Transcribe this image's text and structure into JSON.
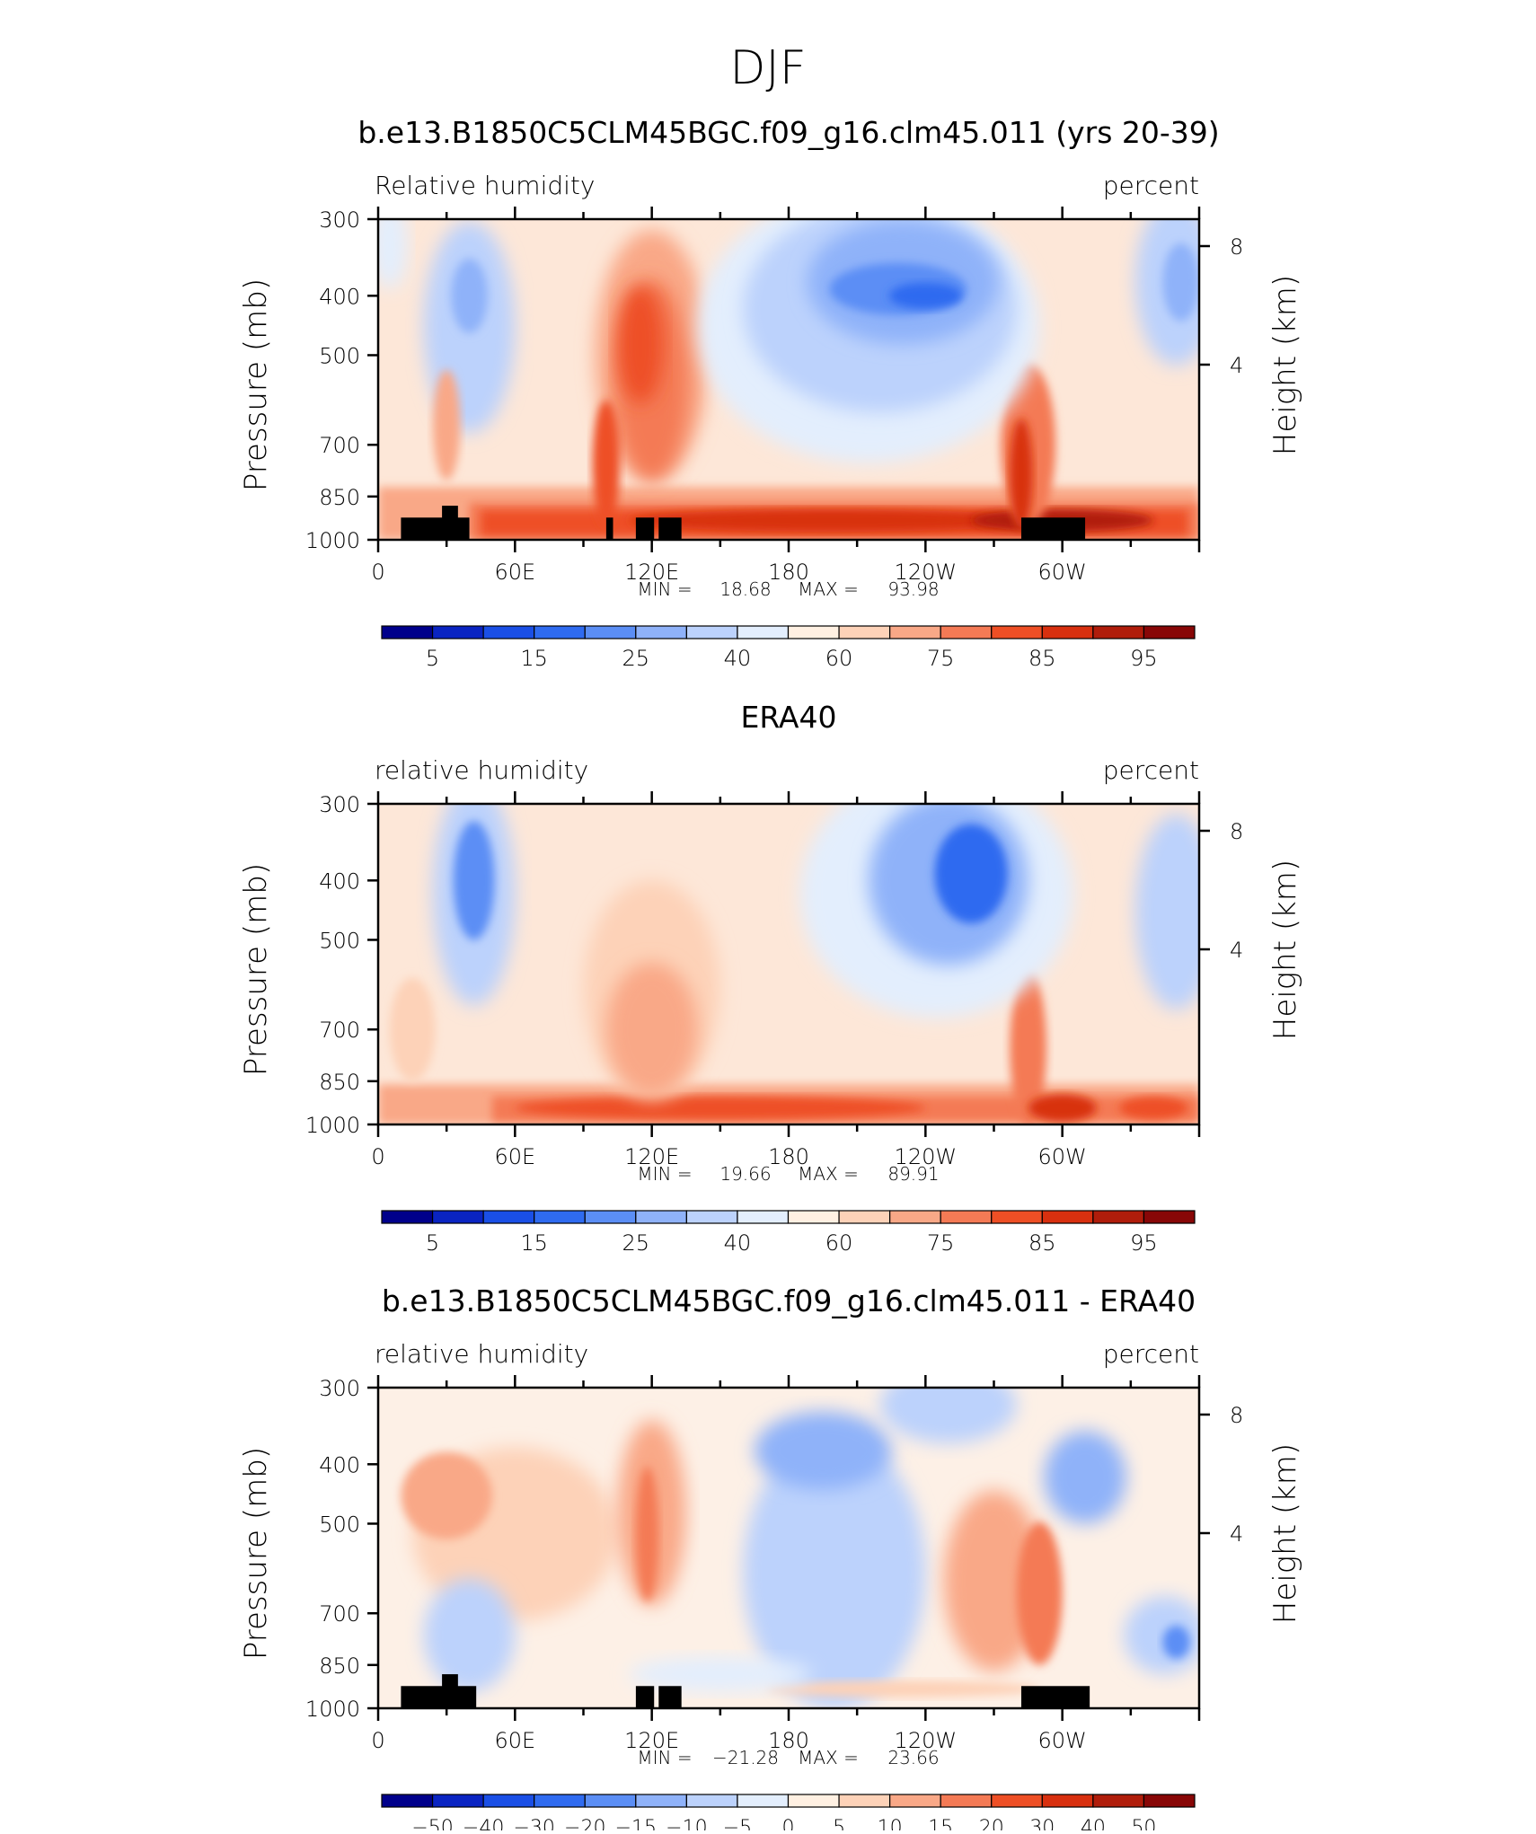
{
  "page_title": "DJF",
  "colors": {
    "rh_palette": [
      "#00008b",
      "#0a24c2",
      "#1a4fe6",
      "#2f6bf0",
      "#5b8ef5",
      "#8fb2f9",
      "#bcd2fc",
      "#e3eefd",
      "#fff0e2",
      "#fdd2b8",
      "#f9a887",
      "#f47a55",
      "#ee4f25",
      "#d8300f",
      "#b01d0b",
      "#880707"
    ],
    "diff_palette": [
      "#00008b",
      "#0a24c2",
      "#1a4fe6",
      "#2f6bf0",
      "#5b8ef5",
      "#8fb2f9",
      "#bcd2fc",
      "#e3eefd",
      "#fff0e2",
      "#fdd2b8",
      "#f9a887",
      "#f47a55",
      "#ee4f25",
      "#d8300f",
      "#b01d0b",
      "#880707"
    ],
    "topography": "#000000"
  },
  "chart_data": [
    {
      "type": "heatmap",
      "title": "b.e13.B1850C5CLM45BGC.f09_g16.clm45.011 (yrs 20-39)",
      "left_string": "Relative humidity",
      "right_string": "percent",
      "ylabel": "Pressure (mb)",
      "ylabel_right": "Height (km)",
      "x_ticks": [
        "0",
        "60E",
        "120E",
        "180",
        "120W",
        "60W"
      ],
      "y_ticks": [
        "300",
        "400",
        "500",
        "700",
        "850",
        "1000"
      ],
      "y_right_ticks": [
        "8",
        "4"
      ],
      "ylim": [
        1000,
        300
      ],
      "stats": {
        "min_label": "MIN =",
        "min": "18.68",
        "max_label": "MAX =",
        "max": "93.98"
      },
      "colorbar_labels": [
        "5",
        "15",
        "25",
        "40",
        "60",
        "75",
        "85",
        "95"
      ],
      "colorbar_levels": [
        5,
        10,
        15,
        20,
        25,
        30,
        40,
        50,
        60,
        70,
        75,
        80,
        85,
        90,
        95
      ]
    },
    {
      "type": "heatmap",
      "title": "ERA40",
      "left_string": "relative humidity",
      "right_string": "percent",
      "ylabel": "Pressure (mb)",
      "ylabel_right": "Height (km)",
      "x_ticks": [
        "0",
        "60E",
        "120E",
        "180",
        "120W",
        "60W"
      ],
      "y_ticks": [
        "300",
        "400",
        "500",
        "700",
        "850",
        "1000"
      ],
      "y_right_ticks": [
        "8",
        "4"
      ],
      "ylim": [
        1000,
        300
      ],
      "stats": {
        "min_label": "MIN =",
        "min": "19.66",
        "max_label": "MAX =",
        "max": "89.91"
      },
      "colorbar_labels": [
        "5",
        "15",
        "25",
        "40",
        "60",
        "75",
        "85",
        "95"
      ],
      "colorbar_levels": [
        5,
        10,
        15,
        20,
        25,
        30,
        40,
        50,
        60,
        70,
        75,
        80,
        85,
        90,
        95
      ]
    },
    {
      "type": "heatmap",
      "title": "b.e13.B1850C5CLM45BGC.f09_g16.clm45.011 - ERA40",
      "left_string": "relative humidity",
      "right_string": "percent",
      "ylabel": "Pressure (mb)",
      "ylabel_right": "Height (km)",
      "x_ticks": [
        "0",
        "60E",
        "120E",
        "180",
        "120W",
        "60W"
      ],
      "y_ticks": [
        "300",
        "400",
        "500",
        "700",
        "850",
        "1000"
      ],
      "y_right_ticks": [
        "8",
        "4"
      ],
      "ylim": [
        1000,
        300
      ],
      "stats": {
        "min_label": "MIN =",
        "min": "−21.28",
        "max_label": "MAX =",
        "max": "23.66"
      },
      "colorbar_labels": [
        "−50",
        "−40",
        "−30",
        "−20",
        "−15",
        "−10",
        "−5",
        "0",
        "5",
        "10",
        "15",
        "20",
        "30",
        "40",
        "50"
      ],
      "colorbar_levels": [
        -50,
        -40,
        -30,
        -20,
        -15,
        -10,
        -5,
        0,
        5,
        10,
        15,
        20,
        30,
        40,
        50
      ]
    }
  ]
}
